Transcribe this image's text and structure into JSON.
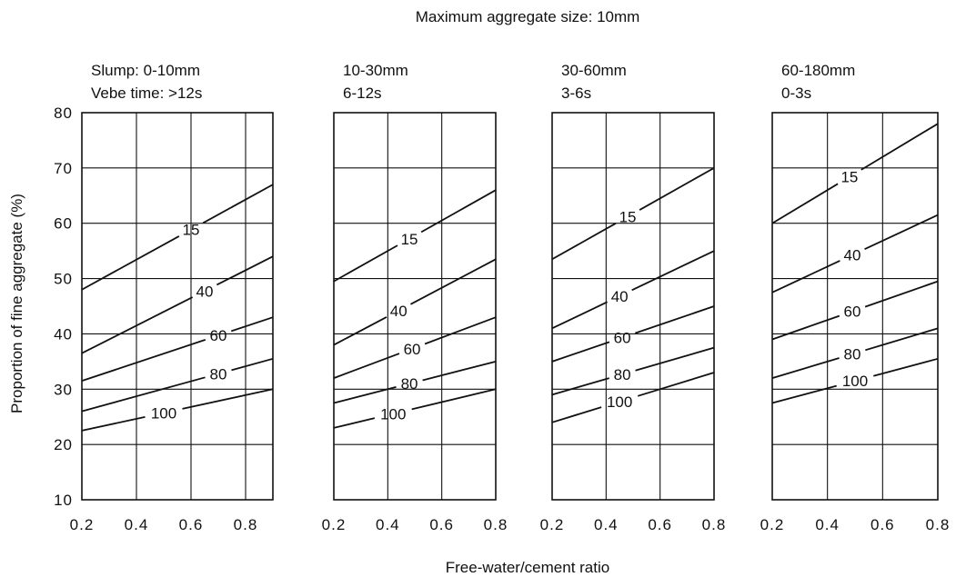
{
  "chart_data": {
    "type": "line",
    "title": "Maximum aggregate size: 10mm",
    "xlabel": "Free-water/cement ratio",
    "ylabel": "Proportion of fine aggregate (%)",
    "ylim": [
      10,
      80
    ],
    "y_ticks": [
      "10",
      "20",
      "30",
      "40",
      "50",
      "60",
      "70",
      "80"
    ],
    "grid": true,
    "panels": [
      {
        "header_line1": "Slump: 0-10mm",
        "header_line2": "Vebe time: >12s",
        "xlim": [
          0.2,
          0.9
        ],
        "x_ticks": [
          "0.2",
          "0.4",
          "0.6",
          "0.8"
        ],
        "series": [
          {
            "name": "15",
            "x": [
              0.2,
              0.9
            ],
            "y": [
              48,
              67
            ],
            "label_x": 0.6
          },
          {
            "name": "40",
            "x": [
              0.2,
              0.9
            ],
            "y": [
              36.5,
              54
            ],
            "label_x": 0.65
          },
          {
            "name": "60",
            "x": [
              0.2,
              0.9
            ],
            "y": [
              31.5,
              43
            ],
            "label_x": 0.7
          },
          {
            "name": "80",
            "x": [
              0.2,
              0.9
            ],
            "y": [
              26,
              35.5
            ],
            "label_x": 0.7
          },
          {
            "name": "100",
            "x": [
              0.2,
              0.9
            ],
            "y": [
              22.5,
              30
            ],
            "label_x": 0.5
          }
        ]
      },
      {
        "header_line1": "10-30mm",
        "header_line2": "6-12s",
        "xlim": [
          0.2,
          0.8
        ],
        "x_ticks": [
          "0.2",
          "0.4",
          "0.6",
          "0.8"
        ],
        "series": [
          {
            "name": "15",
            "x": [
              0.2,
              0.8
            ],
            "y": [
              49.5,
              66
            ],
            "label_x": 0.48
          },
          {
            "name": "40",
            "x": [
              0.2,
              0.8
            ],
            "y": [
              38,
              53.5
            ],
            "label_x": 0.44
          },
          {
            "name": "60",
            "x": [
              0.2,
              0.8
            ],
            "y": [
              32,
              43
            ],
            "label_x": 0.49
          },
          {
            "name": "80",
            "x": [
              0.2,
              0.8
            ],
            "y": [
              27.5,
              35
            ],
            "label_x": 0.48
          },
          {
            "name": "100",
            "x": [
              0.2,
              0.8
            ],
            "y": [
              23,
              30
            ],
            "label_x": 0.42
          }
        ]
      },
      {
        "header_line1": "30-60mm",
        "header_line2": "3-6s",
        "xlim": [
          0.2,
          0.8
        ],
        "x_ticks": [
          "0.2",
          "0.4",
          "0.6",
          "0.8"
        ],
        "series": [
          {
            "name": "15",
            "x": [
              0.2,
              0.8
            ],
            "y": [
              53.5,
              70
            ],
            "label_x": 0.48
          },
          {
            "name": "40",
            "x": [
              0.2,
              0.8
            ],
            "y": [
              41,
              55
            ],
            "label_x": 0.45
          },
          {
            "name": "60",
            "x": [
              0.2,
              0.8
            ],
            "y": [
              35,
              45
            ],
            "label_x": 0.46
          },
          {
            "name": "80",
            "x": [
              0.2,
              0.8
            ],
            "y": [
              29,
              37.5
            ],
            "label_x": 0.46
          },
          {
            "name": "100",
            "x": [
              0.2,
              0.8
            ],
            "y": [
              24,
              33
            ],
            "label_x": 0.45
          }
        ]
      },
      {
        "header_line1": "60-180mm",
        "header_line2": "0-3s",
        "xlim": [
          0.2,
          0.8
        ],
        "x_ticks": [
          "0.2",
          "0.4",
          "0.6",
          "0.8"
        ],
        "series": [
          {
            "name": "15",
            "x": [
              0.2,
              0.8
            ],
            "y": [
              60,
              78
            ],
            "label_x": 0.48
          },
          {
            "name": "40",
            "x": [
              0.2,
              0.8
            ],
            "y": [
              47.5,
              61.5
            ],
            "label_x": 0.49
          },
          {
            "name": "60",
            "x": [
              0.2,
              0.8
            ],
            "y": [
              39,
              49.5
            ],
            "label_x": 0.49
          },
          {
            "name": "80",
            "x": [
              0.2,
              0.8
            ],
            "y": [
              32,
              41
            ],
            "label_x": 0.49
          },
          {
            "name": "100",
            "x": [
              0.2,
              0.8
            ],
            "y": [
              27.5,
              35.5
            ],
            "label_x": 0.5
          }
        ]
      }
    ]
  }
}
